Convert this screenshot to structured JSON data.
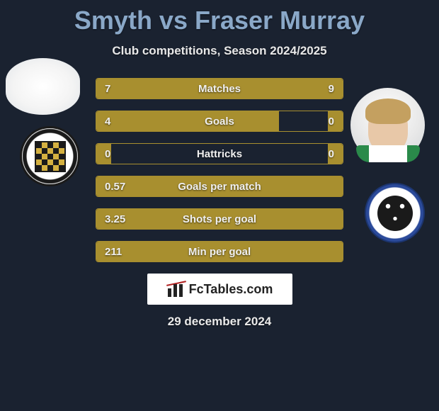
{
  "title": "Smyth vs Fraser Murray",
  "subtitle": "Club competitions, Season 2024/2025",
  "brand_text": "FcTables.com",
  "date_text": "29 december 2024",
  "colors": {
    "background": "#1a2230",
    "title": "#8aa8c8",
    "bar_fill": "#a88f2f",
    "bar_border": "#a88f2f",
    "text": "#f0f0f0"
  },
  "stats": [
    {
      "label": "Matches",
      "left_value": "7",
      "right_value": "9",
      "left_pct": 44,
      "right_pct": 56
    },
    {
      "label": "Goals",
      "left_value": "4",
      "right_value": "0",
      "left_pct": 74,
      "right_pct": 6
    },
    {
      "label": "Hattricks",
      "left_value": "0",
      "right_value": "0",
      "left_pct": 6,
      "right_pct": 6
    },
    {
      "label": "Goals per match",
      "left_value": "0.57",
      "right_value": "",
      "left_pct": 100,
      "right_pct": 0
    },
    {
      "label": "Shots per goal",
      "left_value": "3.25",
      "right_value": "",
      "left_pct": 100,
      "right_pct": 0
    },
    {
      "label": "Min per goal",
      "left_value": "211",
      "right_value": "",
      "left_pct": 100,
      "right_pct": 0
    }
  ],
  "player_left": {
    "name": "Smyth",
    "crest": "St Mirren FC"
  },
  "player_right": {
    "name": "Fraser Murray",
    "crest": "Kilmarnock"
  }
}
